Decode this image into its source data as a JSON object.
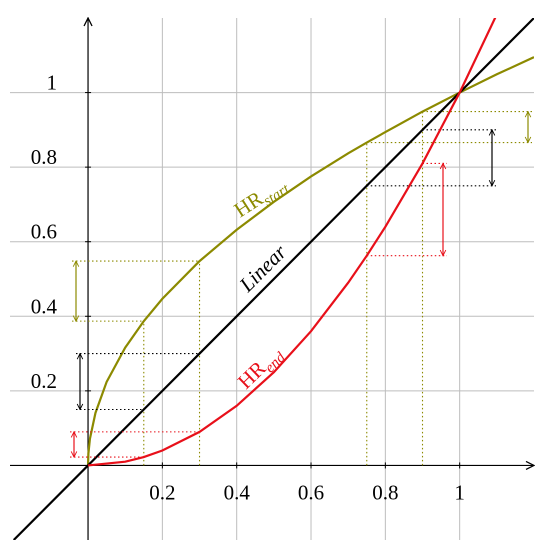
{
  "chart_data": {
    "type": "line",
    "xlim": [
      -0.21,
      1.2
    ],
    "ylim": [
      -0.2,
      1.2
    ],
    "xticks": [
      0.2,
      0.4,
      0.6,
      0.8,
      1
    ],
    "yticks": [
      0.2,
      0.4,
      0.6,
      0.8,
      1
    ],
    "grid": true,
    "intervals": [
      [
        0.15,
        0.3
      ],
      [
        0.75,
        0.9
      ]
    ],
    "series": [
      {
        "name": "HR",
        "subscript": "start",
        "color": "#8c8a00",
        "x": [
          0,
          0.001,
          0.005,
          0.02,
          0.05,
          0.1,
          0.15,
          0.2,
          0.3,
          0.4,
          0.5,
          0.6,
          0.7,
          0.75,
          0.8,
          0.9,
          1,
          1.1,
          1.2
        ],
        "values": [
          0,
          0.032,
          0.071,
          0.141,
          0.224,
          0.316,
          0.387,
          0.447,
          0.548,
          0.632,
          0.707,
          0.775,
          0.837,
          0.866,
          0.894,
          0.949,
          1,
          1.049,
          1.095
        ]
      },
      {
        "name": "Linear",
        "color": "#000000",
        "x": [
          -0.2,
          0.15,
          0.3,
          0.75,
          0.9,
          1.2
        ],
        "values": [
          -0.2,
          0.15,
          0.3,
          0.75,
          0.9,
          1.2
        ]
      },
      {
        "name": "HR",
        "subscript": "end",
        "color": "#e8101a",
        "x": [
          0,
          0.1,
          0.15,
          0.2,
          0.3,
          0.4,
          0.5,
          0.6,
          0.7,
          0.75,
          0.8,
          0.9,
          1,
          1.1
        ],
        "values": [
          0,
          0.01,
          0.0225,
          0.04,
          0.09,
          0.16,
          0.25,
          0.36,
          0.49,
          0.5625,
          0.64,
          0.81,
          1,
          1.21
        ]
      }
    ]
  }
}
